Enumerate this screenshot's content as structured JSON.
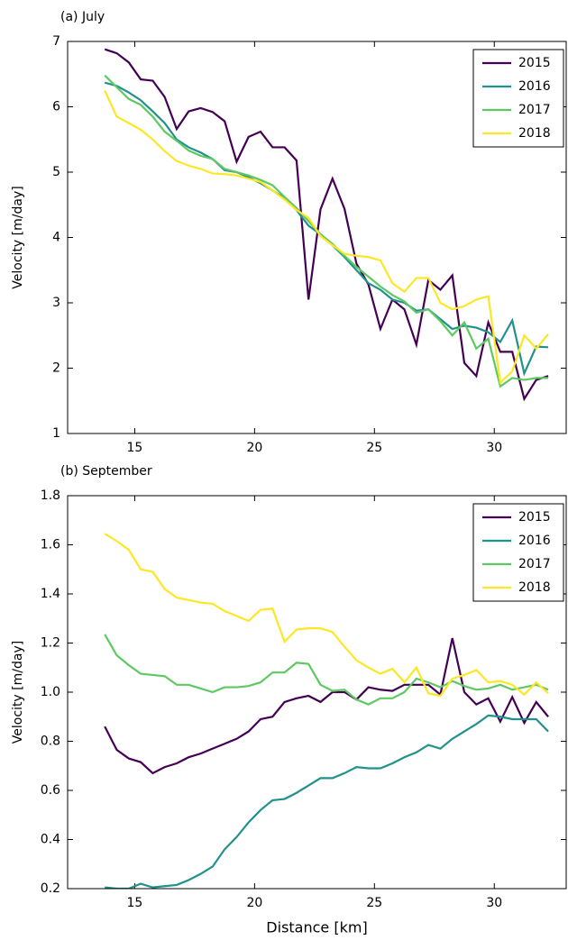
{
  "chart_data": [
    {
      "type": "line",
      "title": "(a) July",
      "ylabel": "Velocity [m/day]",
      "legend": "upper right",
      "x": [
        13.75,
        14.25,
        14.75,
        15.25,
        15.75,
        16.25,
        16.75,
        17.25,
        17.75,
        18.25,
        18.75,
        19.25,
        19.75,
        20.25,
        20.75,
        21.25,
        21.75,
        22.25,
        22.75,
        23.25,
        23.75,
        24.25,
        24.75,
        25.25,
        25.75,
        26.25,
        26.75,
        27.25,
        27.75,
        28.25,
        28.75,
        29.25,
        29.75,
        30.25,
        30.75,
        31.25,
        31.75,
        32.25
      ],
      "xlim": [
        12.2,
        33.0
      ],
      "ylim": [
        1,
        7
      ],
      "xticks": [
        15,
        20,
        25,
        30
      ],
      "yticks": [
        1,
        2,
        3,
        4,
        5,
        6,
        7
      ],
      "series": [
        {
          "name": "2015",
          "color": "#440154",
          "values": [
            6.88,
            6.82,
            6.68,
            6.42,
            6.4,
            6.15,
            5.66,
            5.93,
            5.98,
            5.92,
            5.78,
            5.16,
            5.54,
            5.62,
            5.38,
            5.38,
            5.18,
            3.05,
            4.43,
            4.9,
            4.44,
            3.6,
            3.28,
            2.6,
            3.05,
            2.9,
            2.36,
            3.35,
            3.2,
            3.42,
            2.08,
            1.88,
            2.7,
            2.25,
            2.25,
            1.53,
            1.82,
            1.88
          ]
        },
        {
          "name": "2016",
          "color": "#21918c",
          "values": [
            6.37,
            6.32,
            6.22,
            6.1,
            5.93,
            5.75,
            5.5,
            5.38,
            5.3,
            5.2,
            5.03,
            5.0,
            4.92,
            4.83,
            4.72,
            4.6,
            4.42,
            4.18,
            4.05,
            3.88,
            3.7,
            3.5,
            3.3,
            3.2,
            3.05,
            3.0,
            2.88,
            2.9,
            2.75,
            2.6,
            2.65,
            2.62,
            2.55,
            2.4,
            2.73,
            1.92,
            2.33,
            2.32
          ]
        },
        {
          "name": "2017",
          "color": "#5ec962",
          "values": [
            6.48,
            6.3,
            6.12,
            6.03,
            5.85,
            5.62,
            5.48,
            5.33,
            5.25,
            5.2,
            5.05,
            5.0,
            4.95,
            4.88,
            4.8,
            4.62,
            4.45,
            4.25,
            4.05,
            3.9,
            3.72,
            3.55,
            3.4,
            3.25,
            3.12,
            3.02,
            2.85,
            2.9,
            2.72,
            2.5,
            2.7,
            2.3,
            2.45,
            1.72,
            1.85,
            1.82,
            1.85,
            1.85
          ]
        },
        {
          "name": "2018",
          "color": "#fde725",
          "values": [
            6.25,
            5.85,
            5.75,
            5.65,
            5.5,
            5.32,
            5.17,
            5.1,
            5.05,
            4.98,
            4.97,
            4.95,
            4.9,
            4.85,
            4.72,
            4.58,
            4.42,
            4.3,
            4.02,
            3.88,
            3.75,
            3.72,
            3.7,
            3.65,
            3.3,
            3.17,
            3.38,
            3.38,
            3.0,
            2.9,
            2.95,
            3.05,
            3.1,
            1.78,
            1.95,
            2.5,
            2.3,
            2.52
          ]
        }
      ]
    },
    {
      "type": "line",
      "title": "(b) September",
      "ylabel": "Velocity [m/day]",
      "xlabel": "Distance [km]",
      "legend": "upper right",
      "x": [
        13.75,
        14.25,
        14.75,
        15.25,
        15.75,
        16.25,
        16.75,
        17.25,
        17.75,
        18.25,
        18.75,
        19.25,
        19.75,
        20.25,
        20.75,
        21.25,
        21.75,
        22.25,
        22.75,
        23.25,
        23.75,
        24.25,
        24.75,
        25.25,
        25.75,
        26.25,
        26.75,
        27.25,
        27.75,
        28.25,
        28.75,
        29.25,
        29.75,
        30.25,
        30.75,
        31.25,
        31.75,
        32.25
      ],
      "xlim": [
        12.2,
        33.0
      ],
      "ylim": [
        0.2,
        1.8
      ],
      "xticks": [
        15,
        20,
        25,
        30
      ],
      "yticks": [
        0.2,
        0.4,
        0.6,
        0.8,
        {
          "value": 1,
          "label": "1.0"
        },
        1.2,
        1.4,
        1.6,
        1.8
      ],
      "series": [
        {
          "name": "2015",
          "color": "#440154",
          "values": [
            0.86,
            0.765,
            0.73,
            0.715,
            0.67,
            0.695,
            0.71,
            0.735,
            0.75,
            0.77,
            0.79,
            0.81,
            0.84,
            0.89,
            0.9,
            0.96,
            0.975,
            0.985,
            0.96,
            1.0,
            1.0,
            0.97,
            1.02,
            1.01,
            1.005,
            1.03,
            1.03,
            1.03,
            0.99,
            1.22,
            1.0,
            0.95,
            0.975,
            0.88,
            0.98,
            0.875,
            0.96,
            0.9
          ]
        },
        {
          "name": "2016",
          "color": "#21918c",
          "values": [
            0.205,
            0.2,
            0.2,
            0.22,
            0.205,
            0.21,
            0.215,
            0.235,
            0.26,
            0.29,
            0.36,
            0.41,
            0.47,
            0.52,
            0.56,
            0.565,
            0.59,
            0.62,
            0.65,
            0.65,
            0.67,
            0.695,
            0.69,
            0.69,
            0.71,
            0.735,
            0.755,
            0.785,
            0.77,
            0.81,
            0.84,
            0.87,
            0.905,
            0.9,
            0.89,
            0.89,
            0.89,
            0.84
          ]
        },
        {
          "name": "2017",
          "color": "#5ec962",
          "values": [
            1.235,
            1.15,
            1.11,
            1.075,
            1.07,
            1.065,
            1.03,
            1.03,
            1.015,
            1.0,
            1.02,
            1.02,
            1.025,
            1.04,
            1.08,
            1.08,
            1.12,
            1.115,
            1.03,
            1.005,
            1.01,
            0.97,
            0.95,
            0.975,
            0.975,
            1.0,
            1.055,
            1.04,
            1.02,
            1.045,
            1.025,
            1.01,
            1.015,
            1.03,
            1.01,
            1.02,
            1.03,
            1.01
          ]
        },
        {
          "name": "2018",
          "color": "#fde725",
          "values": [
            1.645,
            1.615,
            1.58,
            1.5,
            1.49,
            1.42,
            1.385,
            1.375,
            1.365,
            1.36,
            1.33,
            1.31,
            1.29,
            1.335,
            1.34,
            1.205,
            1.255,
            1.26,
            1.26,
            1.245,
            1.185,
            1.13,
            1.1,
            1.075,
            1.095,
            1.04,
            1.1,
            0.995,
            0.985,
            1.055,
            1.07,
            1.09,
            1.04,
            1.045,
            1.03,
            0.99,
            1.04,
            0.995
          ]
        }
      ]
    }
  ]
}
